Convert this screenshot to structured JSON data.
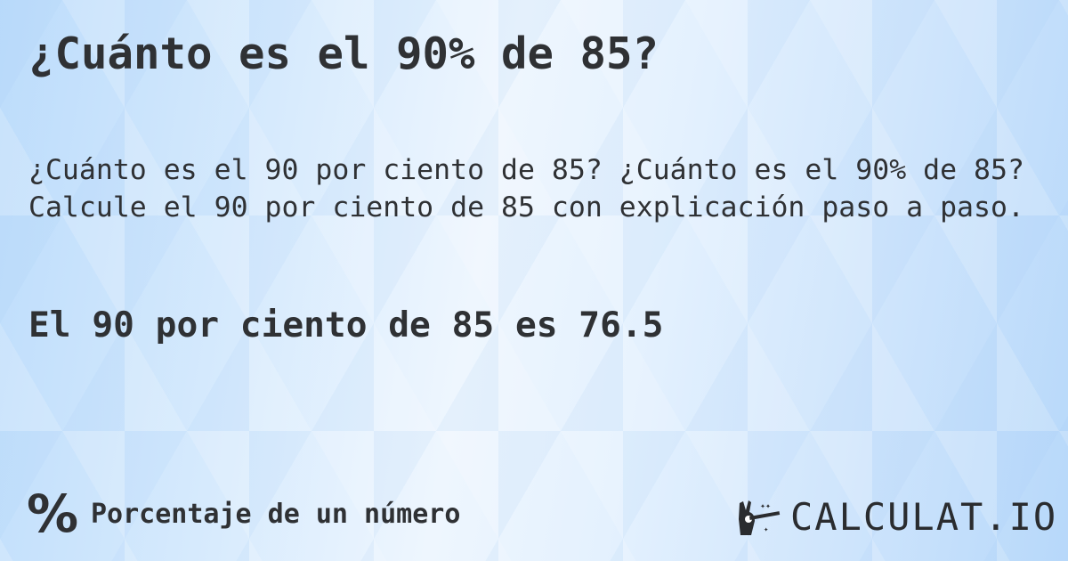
{
  "title": "¿Cuánto es el 90% de 85?",
  "description": "¿Cuánto es el 90 por ciento de 85? ¿Cuánto es el 90% de 85? Calcule el 90 por ciento de 85 con explicación paso a paso.",
  "answer": "El 90 por ciento de 85 es 76.5",
  "category": {
    "icon": "percent-icon",
    "symbol": "%",
    "label": "Porcentaje de un número"
  },
  "logo": {
    "icon": "magic-hand-icon",
    "text": "CALCULAT.IO"
  },
  "colors": {
    "text": "#2f3134",
    "background": "#d6eafd"
  }
}
